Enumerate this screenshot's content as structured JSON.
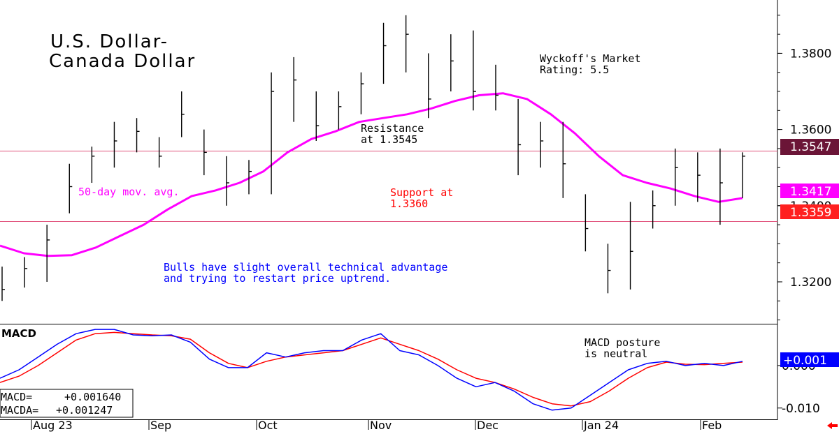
{
  "title_line1": "U.S. Dollar-",
  "title_line2": "Canada Dollar",
  "rating_line1": "Wyckoff's Market",
  "rating_line2": "Rating: 5.5",
  "resistance_line1": "Resistance",
  "resistance_line2": "at 1.3545",
  "support_line1": "Support at",
  "support_line2": "1.3360",
  "ma_label": "50-day mov. avg.",
  "comment_line1": "Bulls have slight overall technical advantage",
  "comment_line2": "and trying to restart price uptrend.",
  "macd_title": "MACD",
  "macd_note_line1": "MACD posture",
  "macd_note_line2": "is neutral",
  "macd_value_label": "MACD=",
  "macd_value": "+0.001640",
  "macda_value_label": "MACDA=",
  "macda_value": "+0.001247",
  "badge_resistance": "1.3547",
  "badge_ma": "1.3417",
  "badge_support": "1.3359",
  "badge_macd": "+0.001",
  "colors": {
    "price_bars": "#000000",
    "moving_average": "#ff00ff",
    "level_lines": "#e0507a",
    "resistance_badge": "#6b1537",
    "ma_badge": "#ff00ff",
    "support_badge": "#ff2020",
    "macd_line": "#0000ff",
    "macd_signal": "#ff0000",
    "macd_badge": "#0000ff",
    "comment_text": "#0000ff",
    "support_text": "#ff0000",
    "ma_text": "#ff00ff"
  },
  "chart_data": [
    {
      "type": "ohlc",
      "title": "U.S. Dollar-Canada Dollar",
      "xlabel": "",
      "ylabel": "",
      "ylim": [
        1.309,
        1.394
      ],
      "y_ticks": [
        1.32,
        1.34,
        1.36,
        1.38
      ],
      "y_tick_labels": [
        "1.3200",
        "1.3400",
        "1.3600",
        "1.3800"
      ],
      "x_months": [
        "Aug 23",
        "Sep",
        "Oct",
        "Nov",
        "Dec",
        "Jan 24",
        "Feb"
      ],
      "horizontal_levels": [
        {
          "name": "Resistance",
          "value": 1.3545
        },
        {
          "name": "Support",
          "value": 1.336
        }
      ],
      "moving_average": {
        "name": "50-day mov. avg.",
        "values": [
          1.3295,
          1.3275,
          1.3268,
          1.327,
          1.329,
          1.332,
          1.335,
          1.339,
          1.3425,
          1.344,
          1.346,
          1.349,
          1.354,
          1.3575,
          1.3595,
          1.362,
          1.363,
          1.364,
          1.3655,
          1.3675,
          1.369,
          1.3695,
          1.368,
          1.364,
          1.359,
          1.353,
          1.348,
          1.346,
          1.3445,
          1.3425,
          1.341,
          1.342
        ]
      },
      "bars": [
        {
          "h": 1.324,
          "l": 1.315,
          "c": 1.318
        },
        {
          "h": 1.3265,
          "l": 1.3185,
          "c": 1.3235
        },
        {
          "h": 1.335,
          "l": 1.32,
          "c": 1.331
        },
        {
          "h": 1.351,
          "l": 1.338,
          "c": 1.345
        },
        {
          "h": 1.3555,
          "l": 1.346,
          "c": 1.353
        },
        {
          "h": 1.362,
          "l": 1.35,
          "c": 1.357
        },
        {
          "h": 1.363,
          "l": 1.354,
          "c": 1.3595
        },
        {
          "h": 1.358,
          "l": 1.35,
          "c": 1.353
        },
        {
          "h": 1.37,
          "l": 1.358,
          "c": 1.364
        },
        {
          "h": 1.36,
          "l": 1.348,
          "c": 1.354
        },
        {
          "h": 1.353,
          "l": 1.34,
          "c": 1.346
        },
        {
          "h": 1.352,
          "l": 1.343,
          "c": 1.349
        },
        {
          "h": 1.375,
          "l": 1.343,
          "c": 1.37
        },
        {
          "h": 1.379,
          "l": 1.362,
          "c": 1.373
        },
        {
          "h": 1.37,
          "l": 1.357,
          "c": 1.361
        },
        {
          "h": 1.37,
          "l": 1.36,
          "c": 1.366
        },
        {
          "h": 1.375,
          "l": 1.364,
          "c": 1.372
        },
        {
          "h": 1.388,
          "l": 1.372,
          "c": 1.382
        },
        {
          "h": 1.39,
          "l": 1.375,
          "c": 1.385
        },
        {
          "h": 1.38,
          "l": 1.363,
          "c": 1.368
        },
        {
          "h": 1.385,
          "l": 1.37,
          "c": 1.378
        },
        {
          "h": 1.386,
          "l": 1.365,
          "c": 1.37
        },
        {
          "h": 1.377,
          "l": 1.365,
          "c": 1.369
        },
        {
          "h": 1.368,
          "l": 1.348,
          "c": 1.356
        },
        {
          "h": 1.362,
          "l": 1.35,
          "c": 1.357
        },
        {
          "h": 1.362,
          "l": 1.342,
          "c": 1.351
        },
        {
          "h": 1.343,
          "l": 1.328,
          "c": 1.334
        },
        {
          "h": 1.33,
          "l": 1.317,
          "c": 1.323
        },
        {
          "h": 1.341,
          "l": 1.318,
          "c": 1.328
        },
        {
          "h": 1.344,
          "l": 1.334,
          "c": 1.34
        },
        {
          "h": 1.355,
          "l": 1.34,
          "c": 1.35
        },
        {
          "h": 1.354,
          "l": 1.341,
          "c": 1.348
        },
        {
          "h": 1.355,
          "l": 1.335,
          "c": 1.346
        },
        {
          "h": 1.354,
          "l": 1.342,
          "c": 1.353
        }
      ]
    },
    {
      "type": "line",
      "title": "MACD",
      "ylim": [
        -0.0125,
        0.0095
      ],
      "y_ticks": [
        -0.01,
        0.0
      ],
      "y_tick_labels": [
        "-0.010",
        "0.000"
      ],
      "series": [
        {
          "name": "MACD",
          "values": [
            -0.003,
            -0.001,
            0.002,
            0.005,
            0.0075,
            0.0085,
            0.0085,
            0.0072,
            0.007,
            0.0072,
            0.0055,
            0.0015,
            -0.0005,
            -0.0005,
            0.003,
            0.002,
            0.003,
            0.0035,
            0.0035,
            0.006,
            0.0075,
            0.0035,
            0.0025,
            0.0,
            -0.003,
            -0.005,
            -0.004,
            -0.006,
            -0.009,
            -0.0105,
            -0.01,
            -0.007,
            -0.004,
            -0.001,
            0.0005,
            0.001,
            0.0,
            0.0005,
            0.0,
            0.001
          ]
        },
        {
          "name": "MACDA",
          "values": [
            -0.004,
            -0.0025,
            0.0,
            0.003,
            0.006,
            0.0075,
            0.0078,
            0.0075,
            0.0072,
            0.007,
            0.0062,
            0.003,
            0.0005,
            -0.0005,
            0.001,
            0.002,
            0.0025,
            0.003,
            0.0035,
            0.005,
            0.0065,
            0.005,
            0.0035,
            0.0015,
            -0.001,
            -0.003,
            -0.004,
            -0.0055,
            -0.0075,
            -0.009,
            -0.0095,
            -0.0085,
            -0.006,
            -0.003,
            -0.0005,
            0.0008,
            0.0003,
            0.0002,
            0.0005,
            0.0008
          ]
        }
      ]
    }
  ]
}
